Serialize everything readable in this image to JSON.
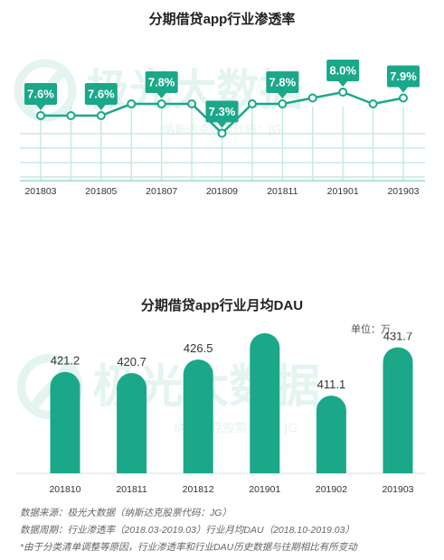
{
  "chart_data": [
    {
      "type": "line",
      "title": "分期借贷app行业渗透率",
      "x_ticks": [
        "201803",
        "201805",
        "201807",
        "201809",
        "201811",
        "201901",
        "201903"
      ],
      "points": [
        {
          "x": "201803",
          "y": 7.6
        },
        {
          "x": "201804",
          "y": 7.6
        },
        {
          "x": "201805",
          "y": 7.6
        },
        {
          "x": "201806",
          "y": 7.8
        },
        {
          "x": "201807",
          "y": 7.8
        },
        {
          "x": "201808",
          "y": 7.8
        },
        {
          "x": "201809",
          "y": 7.3
        },
        {
          "x": "201810",
          "y": 7.8
        },
        {
          "x": "201811",
          "y": 7.8
        },
        {
          "x": "201812",
          "y": 7.9
        },
        {
          "x": "201901",
          "y": 8.0
        },
        {
          "x": "201902",
          "y": 7.8
        },
        {
          "x": "201903",
          "y": 7.9
        }
      ],
      "data_labels": [
        {
          "x": "201803",
          "text": "7.6%"
        },
        {
          "x": "201805",
          "text": "7.6%"
        },
        {
          "x": "201807",
          "text": "7.8%"
        },
        {
          "x": "201809",
          "text": "7.3%"
        },
        {
          "x": "201811",
          "text": "7.8%"
        },
        {
          "x": "201901",
          "text": "8.0%"
        },
        {
          "x": "201903",
          "text": "7.9%"
        }
      ],
      "grid": true,
      "colors": {
        "line": "#1aa889",
        "label_bg": "#1aa889",
        "label_text": "#ffffff",
        "grid": "#c8eadf"
      }
    },
    {
      "type": "bar",
      "title": "分期借贷app行业月均DAU",
      "unit": "单位：万",
      "categories": [
        "201810",
        "201811",
        "201812",
        "201901",
        "201902",
        "201903"
      ],
      "values": [
        421.2,
        420.7,
        426.5,
        437.7,
        411.1,
        431.7
      ],
      "colors": {
        "bar": "#1aa889"
      }
    }
  ],
  "watermark": {
    "brand": "极光大数据",
    "subtitle": "纳斯达克股票代码：JG"
  },
  "footer": {
    "source": "数据来源：极光大数据（纳斯达克股票代码：JG）",
    "period": "数据周期：行业渗透率（2018.03-2019.03）行业月均DAU（2018.10-2019.03）",
    "note": "*由于分类清单调整等原因，行业渗透率和行业DAU历史数据与往期相比有所变动"
  }
}
